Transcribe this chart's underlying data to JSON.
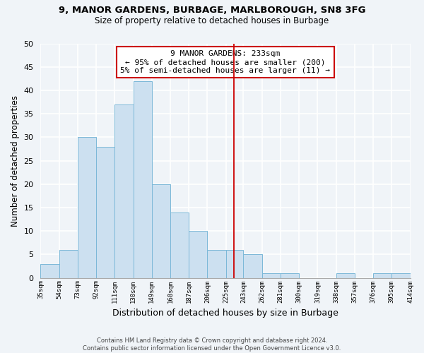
{
  "title": "9, MANOR GARDENS, BURBAGE, MARLBOROUGH, SN8 3FG",
  "subtitle": "Size of property relative to detached houses in Burbage",
  "xlabel": "Distribution of detached houses by size in Burbage",
  "ylabel": "Number of detached properties",
  "footer_lines": [
    "Contains HM Land Registry data © Crown copyright and database right 2024.",
    "Contains public sector information licensed under the Open Government Licence v3.0."
  ],
  "bin_edges": [
    35,
    54,
    73,
    92,
    111,
    130,
    149,
    168,
    187,
    206,
    225,
    243,
    262,
    281,
    300,
    319,
    338,
    357,
    376,
    395,
    414
  ],
  "bin_labels": [
    "35sqm",
    "54sqm",
    "73sqm",
    "92sqm",
    "111sqm",
    "130sqm",
    "149sqm",
    "168sqm",
    "187sqm",
    "206sqm",
    "225sqm",
    "243sqm",
    "262sqm",
    "281sqm",
    "300sqm",
    "319sqm",
    "338sqm",
    "357sqm",
    "376sqm",
    "395sqm",
    "414sqm"
  ],
  "counts": [
    3,
    6,
    30,
    28,
    37,
    42,
    20,
    14,
    10,
    6,
    6,
    5,
    1,
    1,
    0,
    0,
    1,
    0,
    1,
    1
  ],
  "bar_color": "#cce0f0",
  "bar_edge_color": "#7bb8d8",
  "vline_x": 233,
  "vline_color": "#cc0000",
  "ylim": [
    0,
    50
  ],
  "yticks": [
    0,
    5,
    10,
    15,
    20,
    25,
    30,
    35,
    40,
    45,
    50
  ],
  "annotation_title": "9 MANOR GARDENS: 233sqm",
  "annotation_line1": "← 95% of detached houses are smaller (200)",
  "annotation_line2": "5% of semi-detached houses are larger (11) →",
  "background_color": "#f0f4f8",
  "grid_color": "#ffffff",
  "title_fontsize": 9.5,
  "subtitle_fontsize": 8.5
}
